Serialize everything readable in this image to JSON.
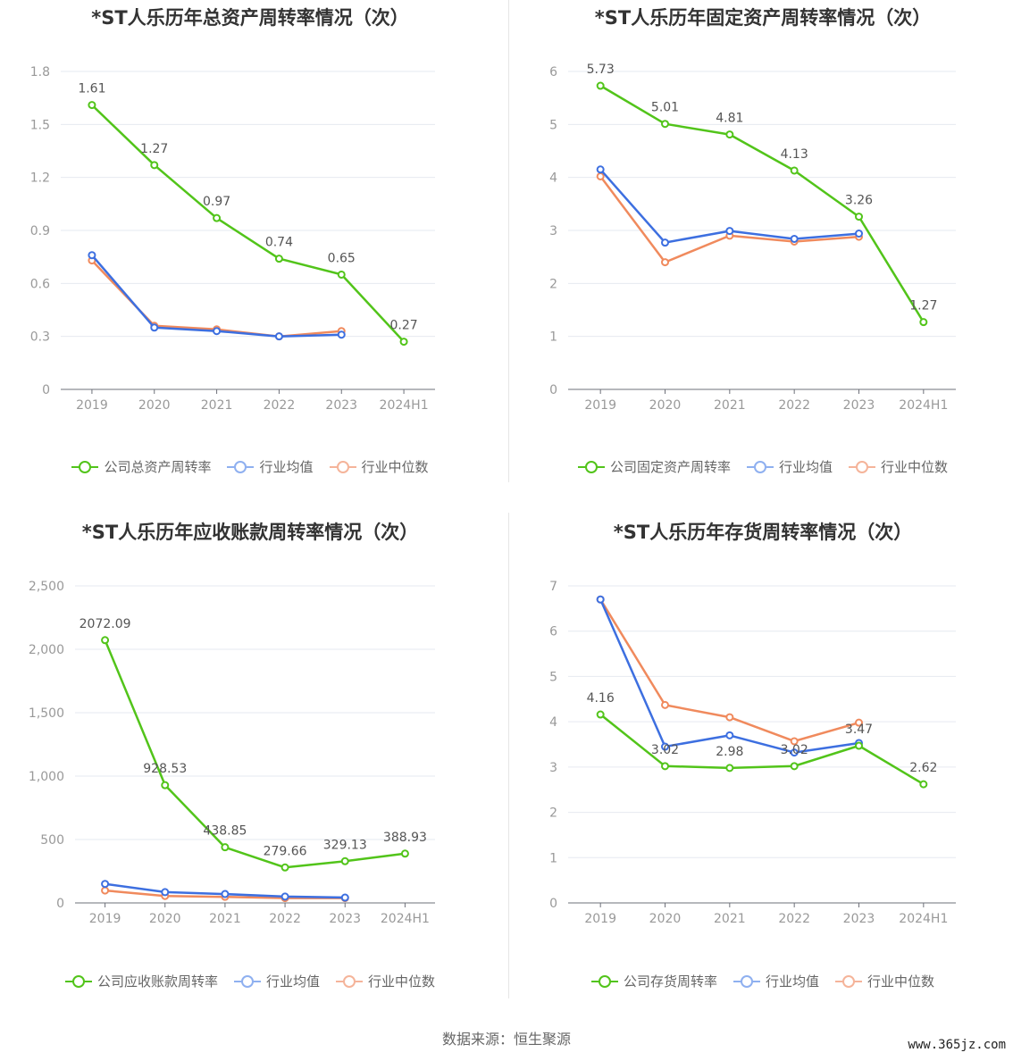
{
  "colors": {
    "company": "#52c41a",
    "industry_avg": "#3d6fe0",
    "industry_median": "#f08a5d",
    "axis": "#999999",
    "grid": "#e6e9f0",
    "label": "#555555"
  },
  "legend": {
    "industry_avg": "行业均值",
    "industry_median": "行业中位数"
  },
  "source_text": "数据来源：恒生聚源",
  "watermark_text": "www.365jz.com",
  "chart_data": [
    {
      "type": "line",
      "title": "*ST人乐历年总资产周转率情况（次）",
      "categories": [
        "2019",
        "2020",
        "2021",
        "2022",
        "2023",
        "2024H1"
      ],
      "ylim": [
        0,
        1.8
      ],
      "yticks": [
        "0",
        "0.3",
        "0.6",
        "0.9",
        "1.2",
        "1.5",
        "1.8"
      ],
      "ytick_values": [
        0,
        0.3,
        0.6,
        0.9,
        1.2,
        1.5,
        1.8
      ],
      "series": [
        {
          "name": "公司总资产周转率",
          "role": "company",
          "values": [
            1.61,
            1.27,
            0.97,
            0.74,
            0.65,
            0.27
          ],
          "labels": [
            "1.61",
            "1.27",
            "0.97",
            "0.74",
            "0.65",
            "0.27"
          ]
        },
        {
          "name": "行业均值",
          "role": "industry_avg",
          "values": [
            0.76,
            0.35,
            0.33,
            0.3,
            0.31,
            null
          ]
        },
        {
          "name": "行业中位数",
          "role": "industry_median",
          "values": [
            0.73,
            0.36,
            0.34,
            0.3,
            0.33,
            null
          ]
        }
      ]
    },
    {
      "type": "line",
      "title": "*ST人乐历年固定资产周转率情况（次）",
      "categories": [
        "2019",
        "2020",
        "2021",
        "2022",
        "2023",
        "2024H1"
      ],
      "ylim": [
        0,
        6
      ],
      "yticks": [
        "0",
        "1",
        "2",
        "3",
        "4",
        "5",
        "6"
      ],
      "ytick_values": [
        0,
        1,
        2,
        3,
        4,
        5,
        6
      ],
      "series": [
        {
          "name": "公司固定资产周转率",
          "role": "company",
          "values": [
            5.73,
            5.01,
            4.81,
            4.13,
            3.26,
            1.27
          ],
          "labels": [
            "5.73",
            "5.01",
            "4.81",
            "4.13",
            "3.26",
            "1.27"
          ]
        },
        {
          "name": "行业均值",
          "role": "industry_avg",
          "values": [
            4.15,
            2.77,
            2.99,
            2.84,
            2.94,
            null
          ]
        },
        {
          "name": "行业中位数",
          "role": "industry_median",
          "values": [
            4.02,
            2.4,
            2.9,
            2.79,
            2.88,
            null
          ]
        }
      ]
    },
    {
      "type": "line",
      "title": "*ST人乐历年应收账款周转率情况（次）",
      "categories": [
        "2019",
        "2020",
        "2021",
        "2022",
        "2023",
        "2024H1"
      ],
      "ylim": [
        0,
        2500
      ],
      "yticks": [
        "0",
        "500",
        "1,000",
        "1,500",
        "2,000",
        "2,500"
      ],
      "ytick_values": [
        0,
        500,
        1000,
        1500,
        2000,
        2500
      ],
      "series": [
        {
          "name": "公司应收账款周转率",
          "role": "company",
          "values": [
            2072.09,
            928.53,
            438.85,
            279.66,
            329.13,
            388.93
          ],
          "labels": [
            "2072.09",
            "928.53",
            "438.85",
            "279.66",
            "329.13",
            "388.93"
          ]
        },
        {
          "name": "行业均值",
          "role": "industry_avg",
          "values": [
            150,
            85,
            70,
            50,
            42,
            null
          ]
        },
        {
          "name": "行业中位数",
          "role": "industry_median",
          "values": [
            98,
            55,
            48,
            38,
            38,
            null
          ]
        }
      ]
    },
    {
      "type": "line",
      "title": "*ST人乐历年存货周转率情况（次）",
      "categories": [
        "2019",
        "2020",
        "2021",
        "2022",
        "2023",
        "2024H1"
      ],
      "ylim": [
        0,
        7
      ],
      "yticks": [
        "0",
        "1",
        "2",
        "3",
        "4",
        "5",
        "6",
        "7"
      ],
      "ytick_values": [
        0,
        1,
        2,
        3,
        4,
        5,
        6,
        7
      ],
      "series": [
        {
          "name": "公司存货周转率",
          "role": "company",
          "values": [
            4.16,
            3.02,
            2.98,
            3.02,
            3.47,
            2.62
          ],
          "labels": [
            "4.16",
            "3.02",
            "2.98",
            "3.02",
            "3.47",
            "2.62"
          ]
        },
        {
          "name": "行业均值",
          "role": "industry_avg",
          "values": [
            6.7,
            3.45,
            3.7,
            3.32,
            3.53,
            null
          ]
        },
        {
          "name": "行业中位数",
          "role": "industry_median",
          "values": [
            6.7,
            4.37,
            4.1,
            3.57,
            3.98,
            null
          ]
        }
      ]
    }
  ]
}
